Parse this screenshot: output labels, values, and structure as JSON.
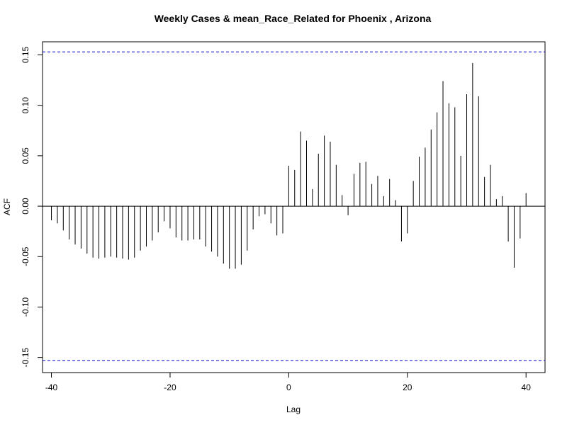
{
  "chart_data": {
    "type": "bar",
    "title": "Weekly Cases & mean_Race_Related for Phoenix , Arizona",
    "xlabel": "Lag",
    "ylabel": "ACF",
    "xlim": [
      -41.5,
      43.2
    ],
    "ylim": [
      -0.165,
      0.163
    ],
    "x_ticks": [
      -40,
      -20,
      0,
      20,
      40
    ],
    "x_tick_labels": [
      "-40",
      "-20",
      "0",
      "20",
      "40"
    ],
    "y_ticks": [
      -0.15,
      -0.1,
      -0.05,
      0.0,
      0.05,
      0.1,
      0.15
    ],
    "y_tick_labels": [
      "-0.15",
      "-0.10",
      "-0.05",
      "0.00",
      "0.05",
      "0.10",
      "0.15"
    ],
    "confidence_bounds": [
      0.153,
      -0.153
    ],
    "series": [
      {
        "x": [
          -40,
          -39,
          -38,
          -37,
          -36,
          -35,
          -34,
          -33,
          -32,
          -31,
          -30,
          -29,
          -28,
          -27,
          -26,
          -25,
          -24,
          -23,
          -22,
          -21,
          -20,
          -19,
          -18,
          -17,
          -16,
          -15,
          -14,
          -13,
          -12,
          -11,
          -10,
          -9,
          -8,
          -7,
          -6,
          -5,
          -4,
          -3,
          -2,
          -1,
          0,
          1,
          2,
          3,
          4,
          5,
          6,
          7,
          8,
          9,
          10,
          11,
          12,
          13,
          14,
          15,
          16,
          17,
          18,
          19,
          20,
          21,
          22,
          23,
          24,
          25,
          26,
          27,
          28,
          29,
          30,
          31,
          32,
          33,
          34,
          35,
          36,
          37,
          38,
          39,
          40
        ],
        "values": [
          -0.014,
          -0.017,
          -0.024,
          -0.033,
          -0.038,
          -0.042,
          -0.047,
          -0.051,
          -0.052,
          -0.051,
          -0.05,
          -0.051,
          -0.052,
          -0.053,
          -0.051,
          -0.044,
          -0.04,
          -0.034,
          -0.026,
          -0.015,
          -0.022,
          -0.031,
          -0.034,
          -0.034,
          -0.033,
          -0.033,
          -0.04,
          -0.045,
          -0.05,
          -0.057,
          -0.062,
          -0.062,
          -0.058,
          -0.044,
          -0.023,
          -0.01,
          -0.008,
          -0.017,
          -0.029,
          -0.027,
          0.04,
          0.036,
          0.074,
          0.065,
          0.017,
          0.052,
          0.07,
          0.064,
          0.041,
          0.011,
          -0.009,
          0.032,
          0.043,
          0.044,
          0.022,
          0.03,
          0.01,
          0.027,
          0.006,
          -0.035,
          -0.027,
          0.025,
          0.049,
          0.058,
          0.076,
          0.093,
          0.124,
          0.102,
          0.098,
          0.05,
          0.111,
          0.142,
          0.109,
          0.029,
          0.041,
          0.007,
          0.01,
          -0.035,
          -0.061,
          -0.032,
          0.013
        ]
      }
    ]
  }
}
